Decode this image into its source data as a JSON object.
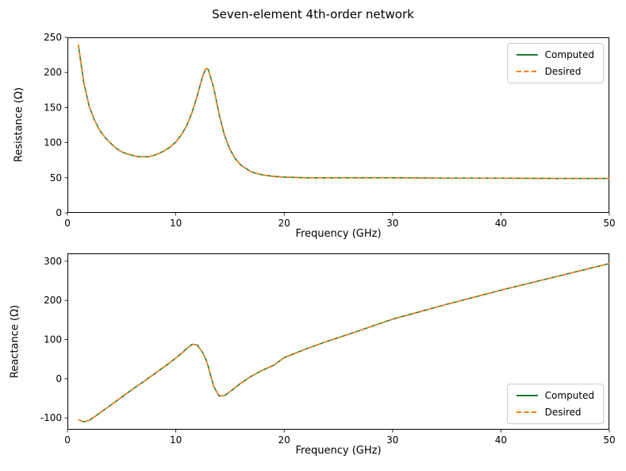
{
  "title": "Seven-element 4th-order network",
  "colors": {
    "computed": "#1e7b34",
    "desired": "#ff7f0e",
    "axis": "#000000",
    "background": "#ffffff",
    "legend_border": "#cccccc"
  },
  "chart_data": [
    {
      "type": "line",
      "title": "",
      "xlabel": "Frequency (GHz)",
      "ylabel": "Resistance (Ω)",
      "xlim": [
        0,
        50
      ],
      "ylim": [
        0,
        250
      ],
      "xticks": [
        0,
        10,
        20,
        30,
        40,
        50
      ],
      "yticks": [
        0,
        50,
        100,
        150,
        200,
        250
      ],
      "grid": false,
      "legend_position": "upper right",
      "x": [
        1,
        1.5,
        2,
        2.5,
        3,
        3.5,
        4,
        4.5,
        5,
        5.5,
        6,
        6.5,
        7,
        7.5,
        8,
        8.5,
        9,
        9.5,
        10,
        10.5,
        11,
        11.5,
        12,
        12.5,
        12.8,
        13,
        13.5,
        14,
        14.5,
        15,
        15.5,
        16,
        17,
        18,
        19,
        20,
        22,
        24,
        26,
        28,
        30,
        35,
        40,
        45,
        50
      ],
      "series": [
        {
          "name": "Computed",
          "color": "#1e7b34",
          "style": "solid",
          "values": [
            240,
            186,
            152,
            132,
            117,
            107,
            99,
            92,
            87,
            84,
            82,
            80,
            80,
            80,
            82,
            85,
            89,
            94,
            101,
            111,
            124,
            143,
            168,
            196,
            206,
            204,
            178,
            140,
            110,
            90,
            77,
            68,
            58,
            54,
            52,
            51,
            50,
            50,
            50,
            50,
            50,
            49.5,
            49.5,
            49,
            49
          ]
        },
        {
          "name": "Desired",
          "color": "#ff7f0e",
          "style": "dashed",
          "values": [
            240,
            186,
            152,
            132,
            117,
            107,
            99,
            92,
            87,
            84,
            82,
            80,
            80,
            80,
            82,
            85,
            89,
            94,
            101,
            111,
            124,
            143,
            168,
            196,
            206,
            204,
            178,
            140,
            110,
            90,
            77,
            68,
            58,
            54,
            52,
            51,
            50,
            50,
            50,
            50,
            50,
            49.5,
            49.5,
            49,
            49
          ]
        }
      ]
    },
    {
      "type": "line",
      "title": "",
      "xlabel": "Frequency (GHz)",
      "ylabel": "Reactance (Ω)",
      "xlim": [
        0,
        50
      ],
      "ylim": [
        -130,
        320
      ],
      "xticks": [
        0,
        10,
        20,
        30,
        40,
        50
      ],
      "yticks": [
        -100,
        0,
        100,
        200,
        300
      ],
      "grid": false,
      "legend_position": "lower right",
      "x": [
        1,
        1.5,
        2,
        2.5,
        3,
        3.5,
        4,
        4.5,
        5,
        5.5,
        6,
        6.5,
        7,
        7.5,
        8,
        8.5,
        9,
        9.5,
        10,
        10.5,
        11,
        11.5,
        12,
        12.5,
        12.8,
        13,
        13.5,
        14,
        14.5,
        15,
        15.5,
        16,
        17,
        18,
        19,
        20,
        22,
        24,
        26,
        28,
        30,
        35,
        40,
        45,
        50
      ],
      "series": [
        {
          "name": "Computed",
          "color": "#1e7b34",
          "style": "solid",
          "values": [
            -104,
            -110,
            -106,
            -97,
            -87,
            -77,
            -67,
            -57,
            -47,
            -37,
            -27,
            -17,
            -8,
            2,
            12,
            22,
            32,
            42,
            53,
            64,
            77,
            88,
            86,
            66,
            48,
            30,
            -20,
            -44,
            -43,
            -33,
            -22,
            -11,
            7,
            22,
            34,
            54,
            76,
            96,
            114,
            133,
            152,
            190,
            226,
            260,
            294
          ]
        },
        {
          "name": "Desired",
          "color": "#ff7f0e",
          "style": "dashed",
          "values": [
            -104,
            -110,
            -106,
            -97,
            -87,
            -77,
            -67,
            -57,
            -47,
            -37,
            -27,
            -17,
            -8,
            2,
            12,
            22,
            32,
            42,
            53,
            64,
            77,
            88,
            86,
            66,
            48,
            30,
            -20,
            -44,
            -43,
            -33,
            -22,
            -11,
            7,
            22,
            34,
            54,
            76,
            96,
            114,
            133,
            152,
            190,
            226,
            260,
            294
          ]
        }
      ]
    }
  ]
}
